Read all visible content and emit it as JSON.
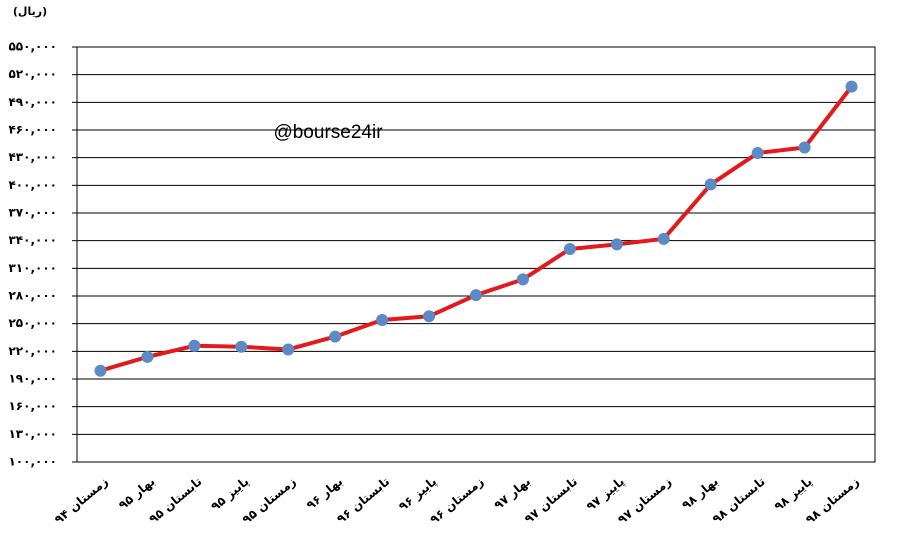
{
  "chart_data": {
    "type": "line",
    "unit_label": "(ریال)",
    "annotation": "@bourse24ir",
    "categories": [
      "زمستان ۹۴",
      "بهار ۹۵",
      "تابستان ۹۵",
      "پاییز ۹۵",
      "زمستان ۹۵",
      "بهار ۹۶",
      "تابستان ۹۶",
      "پاییز ۹۶",
      "زمستان ۹۶",
      "بهار ۹۷",
      "تابستان ۹۷",
      "پاییز ۹۷",
      "زمستان ۹۷",
      "بهار ۹۸",
      "تابستان ۹۸",
      "پاییز ۹۸",
      "زمستان ۹۸"
    ],
    "values": [
      199000,
      214000,
      226000,
      225000,
      222000,
      236000,
      254000,
      258000,
      281000,
      298000,
      331000,
      336000,
      342000,
      401000,
      435000,
      441000,
      507000
    ],
    "color": "#e31a1c",
    "marker_color": "#5b8ac6",
    "ylim": [
      100000,
      550000
    ],
    "yticks": [
      {
        "value": 100000,
        "label": "۱۰۰,۰۰۰"
      },
      {
        "value": 130000,
        "label": "۱۳۰,۰۰۰"
      },
      {
        "value": 160000,
        "label": "۱۶۰,۰۰۰"
      },
      {
        "value": 190000,
        "label": "۱۹۰,۰۰۰"
      },
      {
        "value": 220000,
        "label": "۲۲۰,۰۰۰"
      },
      {
        "value": 250000,
        "label": "۲۵۰,۰۰۰"
      },
      {
        "value": 280000,
        "label": "۲۸۰,۰۰۰"
      },
      {
        "value": 310000,
        "label": "۳۱۰,۰۰۰"
      },
      {
        "value": 340000,
        "label": "۳۴۰,۰۰۰"
      },
      {
        "value": 370000,
        "label": "۳۷۰,۰۰۰"
      },
      {
        "value": 400000,
        "label": "۴۰۰,۰۰۰"
      },
      {
        "value": 430000,
        "label": "۴۳۰,۰۰۰"
      },
      {
        "value": 460000,
        "label": "۴۶۰,۰۰۰"
      },
      {
        "value": 490000,
        "label": "۴۹۰,۰۰۰"
      },
      {
        "value": 520000,
        "label": "۵۲۰,۰۰۰"
      },
      {
        "value": 550000,
        "label": "۵۵۰,۰۰۰"
      }
    ],
    "grid": true
  }
}
